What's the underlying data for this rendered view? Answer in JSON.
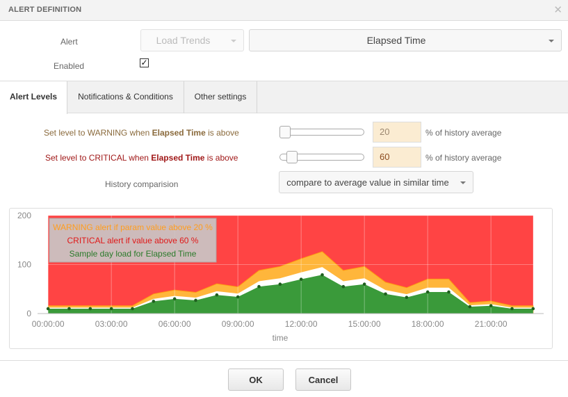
{
  "dialog": {
    "title": "ALERT DEFINITION",
    "close_icon": "close-icon"
  },
  "form": {
    "alert_label": "Alert",
    "alert_source": "Load Trends",
    "alert_param": "Elapsed Time",
    "enabled_label": "Enabled",
    "enabled": true
  },
  "tabs": [
    {
      "label": "Alert Levels",
      "active": true
    },
    {
      "label": "Notifications & Conditions",
      "active": false
    },
    {
      "label": "Other settings",
      "active": false
    }
  ],
  "levels": {
    "warning": {
      "prefix": "Set level to WARNING when ",
      "param": "Elapsed Time",
      "suffix": " is above",
      "value": "20",
      "slider_fraction": 0.0,
      "unit": "% of history average",
      "color": "#8a6a3c"
    },
    "critical": {
      "prefix": "Set level to CRITICAL when ",
      "param": "Elapsed Time",
      "suffix": " is above",
      "value": "60",
      "slider_fraction": 0.1,
      "unit": "% of history average",
      "color": "#a01818"
    },
    "history_label": "History comparision",
    "history_value": "compare to average value in similar time"
  },
  "chart_data": {
    "type": "area",
    "xlabel": "time",
    "ylim": [
      0,
      200
    ],
    "y_ticks": [
      "0",
      "100",
      "200"
    ],
    "x_ticks": [
      "00:00:00",
      "03:00:00",
      "06:00:00",
      "09:00:00",
      "12:00:00",
      "15:00:00",
      "18:00:00",
      "21:00:00"
    ],
    "x_tick_hours": [
      0,
      3,
      6,
      9,
      12,
      15,
      18,
      21
    ],
    "xlim_hours": [
      -0.5,
      23.5
    ],
    "x_hours": [
      0,
      1,
      2,
      3,
      4,
      5,
      6,
      7,
      8,
      9,
      10,
      11,
      12,
      13,
      14,
      15,
      16,
      17,
      18,
      19,
      20,
      21,
      22,
      23
    ],
    "series": [
      {
        "name": "Sample day load for Elapsed Time",
        "color": "#3a9a3a",
        "values": [
          10,
          10,
          10,
          10,
          10,
          25,
          30,
          27,
          38,
          34,
          55,
          60,
          70,
          79,
          55,
          60,
          40,
          33,
          44,
          44,
          14,
          16,
          10,
          10
        ]
      }
    ],
    "warning_pct": 20,
    "critical_pct": 60,
    "legend": [
      {
        "text": "WARNING alert if param value above 20 %",
        "color": "#ff9d1e"
      },
      {
        "text": "CRITICAL alert if value above 60 %",
        "color": "#e01818"
      },
      {
        "text": "Sample day load for Elapsed Time",
        "color": "#2a7a2a"
      }
    ],
    "legend_position": "top-left",
    "colors": {
      "critical": "#ff4444",
      "warning": "#ffb63b",
      "gap": "#ffffff",
      "load": "#3a9a3a"
    }
  },
  "footer": {
    "ok_label": "OK",
    "cancel_label": "Cancel"
  }
}
